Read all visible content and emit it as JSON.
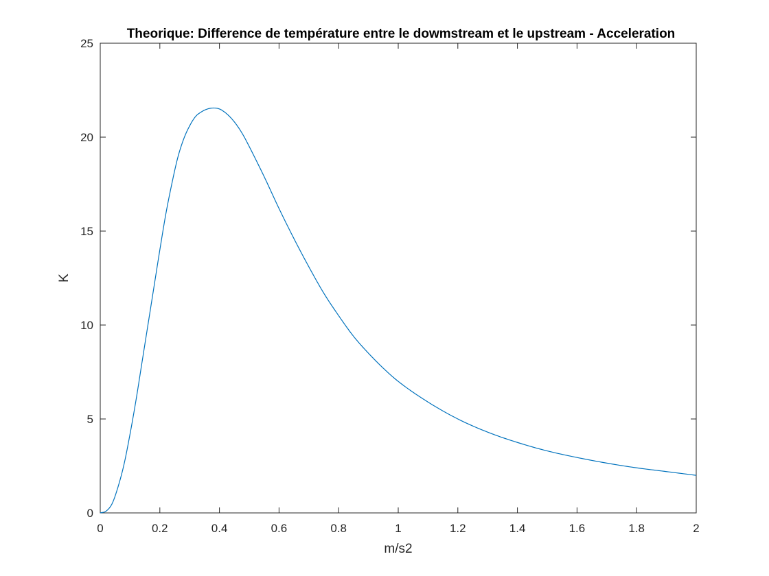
{
  "chart_data": {
    "type": "line",
    "title": "Theorique: Difference de température entre le dowmstream et le upstream - Acceleration",
    "xlabel": "m/s2",
    "ylabel": "K",
    "xlim": [
      0,
      2
    ],
    "ylim": [
      0,
      25
    ],
    "xticks": [
      0,
      0.2,
      0.4,
      0.6,
      0.8,
      1,
      1.2,
      1.4,
      1.6,
      1.8,
      2
    ],
    "xtick_labels": [
      "0",
      "0.2",
      "0.4",
      "0.6",
      "0.8",
      "1",
      "1.2",
      "1.4",
      "1.6",
      "1.8",
      "2"
    ],
    "yticks": [
      0,
      5,
      10,
      15,
      20,
      25
    ],
    "ytick_labels": [
      "0",
      "5",
      "10",
      "15",
      "20",
      "25"
    ],
    "grid": false,
    "box": true,
    "line_color": "#0072bd",
    "axis_color": "#262626",
    "series": [
      {
        "x": [
          0,
          0.02,
          0.04,
          0.06,
          0.08,
          0.1,
          0.12,
          0.14,
          0.16,
          0.18,
          0.2,
          0.22,
          0.24,
          0.26,
          0.28,
          0.3,
          0.32,
          0.34,
          0.36,
          0.38,
          0.4,
          0.42,
          0.44,
          0.46,
          0.48,
          0.5,
          0.55,
          0.6,
          0.65,
          0.7,
          0.75,
          0.8,
          0.85,
          0.9,
          0.95,
          1,
          1.1,
          1.2,
          1.3,
          1.4,
          1.5,
          1.6,
          1.7,
          1.8,
          1.9,
          2
        ],
        "values": [
          0,
          0.1,
          0.5,
          1.4,
          2.6,
          4.2,
          6.0,
          8.0,
          10.0,
          12.0,
          14.0,
          15.9,
          17.5,
          18.9,
          19.9,
          20.6,
          21.1,
          21.35,
          21.5,
          21.55,
          21.5,
          21.3,
          21.0,
          20.6,
          20.1,
          19.5,
          17.9,
          16.2,
          14.6,
          13.1,
          11.7,
          10.5,
          9.4,
          8.5,
          7.7,
          7.0,
          5.9,
          5.0,
          4.3,
          3.75,
          3.3,
          2.95,
          2.65,
          2.4,
          2.2,
          2.0
        ]
      }
    ]
  }
}
